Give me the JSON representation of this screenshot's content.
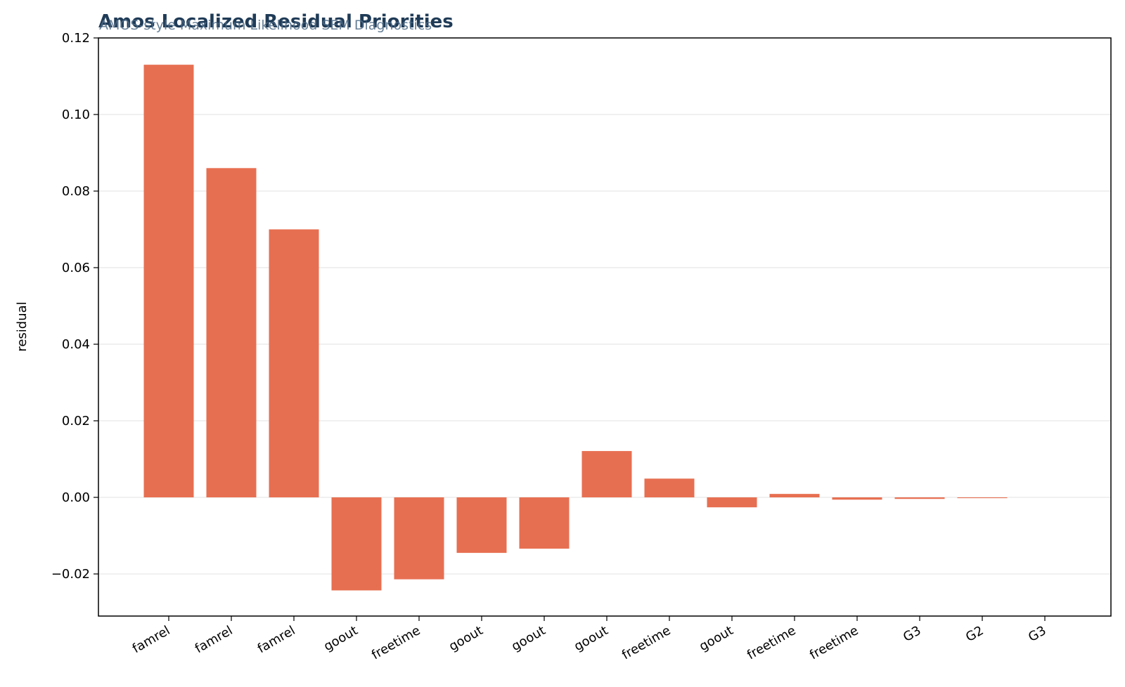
{
  "chart_data": {
    "type": "bar",
    "title": "Amos Localized Residual Priorities",
    "subtitle": "AMOS-style Maximum Likelihood SEM Diagnostics",
    "xlabel": "",
    "ylabel": "residual",
    "categories": [
      "famrel",
      "famrel",
      "famrel",
      "goout",
      "freetime",
      "goout",
      "goout",
      "goout",
      "freetime",
      "goout",
      "freetime",
      "freetime",
      "G3",
      "G2",
      "G3"
    ],
    "values": [
      0.113,
      0.086,
      0.07,
      -0.0243,
      -0.0214,
      -0.0145,
      -0.0134,
      0.0121,
      0.0049,
      -0.0026,
      0.0009,
      -0.0006,
      -0.0004,
      -0.0002,
      0.0
    ],
    "ylim": [
      -0.031,
      0.12
    ],
    "yticks": [
      -0.02,
      0.0,
      0.02,
      0.04,
      0.06,
      0.08,
      0.1,
      0.12
    ],
    "ytick_labels": [
      "−0.02",
      "0.00",
      "0.02",
      "0.04",
      "0.06",
      "0.08",
      "0.10",
      "0.12"
    ],
    "grid": "horizontal",
    "bar_color": "#e76f51",
    "title_color": "#1f3b57"
  }
}
